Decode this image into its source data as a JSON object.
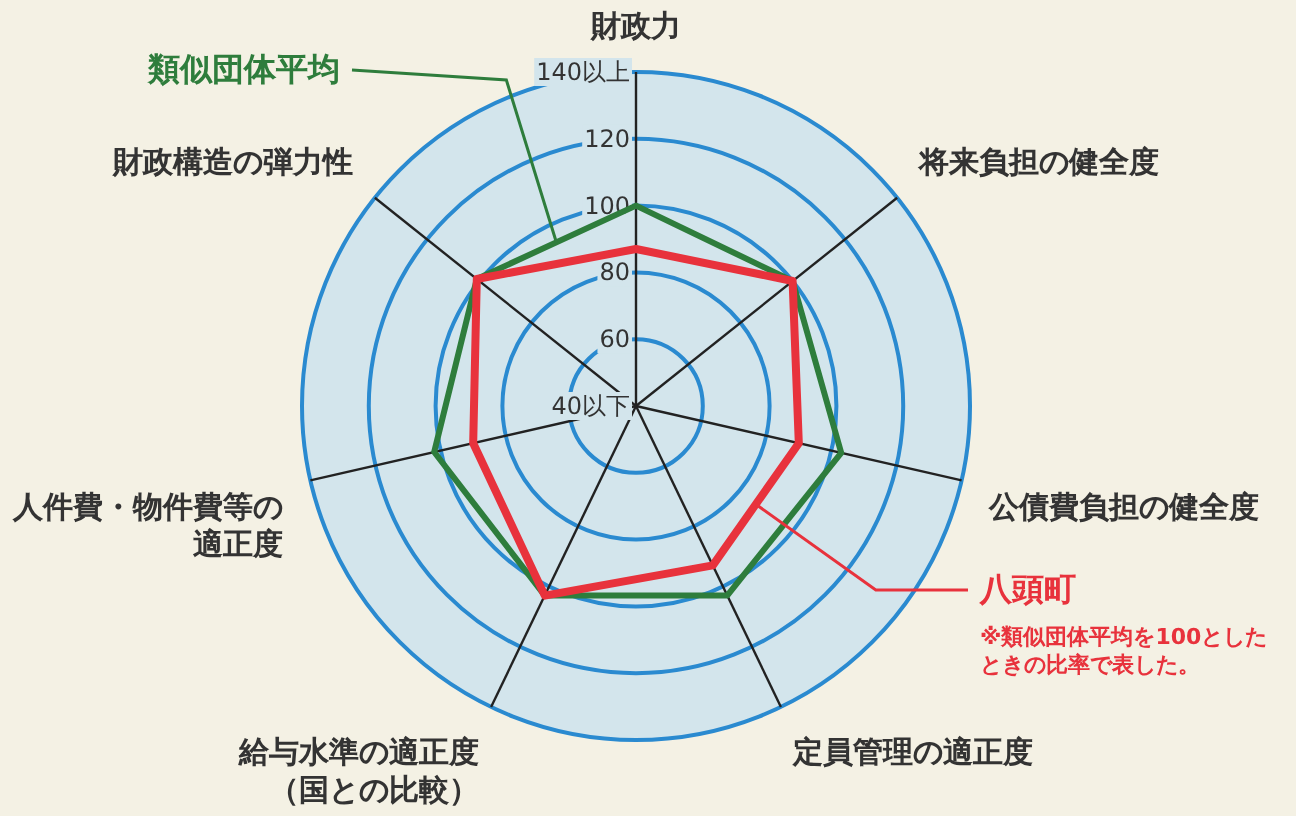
{
  "chart_data": {
    "type": "radar",
    "categories": [
      "財政力",
      "将来負担の健全度",
      "公債費負担の健全度",
      "定員管理の適正度",
      "給与水準の適正度（国との比較）",
      "人件費・物件費等の適正度",
      "財政構造の弾力性"
    ],
    "series": [
      {
        "name": "類似団体平均",
        "color": "#2e7d3c",
        "values": [
          100,
          100,
          103,
          103,
          103,
          102,
          101
        ]
      },
      {
        "name": "八頭町",
        "color": "#e8323c",
        "values": [
          87,
          100,
          90,
          93,
          103,
          90,
          101
        ]
      }
    ],
    "ylim": [
      40,
      140
    ],
    "yticks": [
      {
        "value": 40,
        "label": "40以下"
      },
      60,
      80,
      100,
      120,
      {
        "value": 140,
        "label": "140以上"
      }
    ],
    "grid": true,
    "annotations": [
      "※類似団体平均を100としたときの比率で表した。"
    ]
  }
}
